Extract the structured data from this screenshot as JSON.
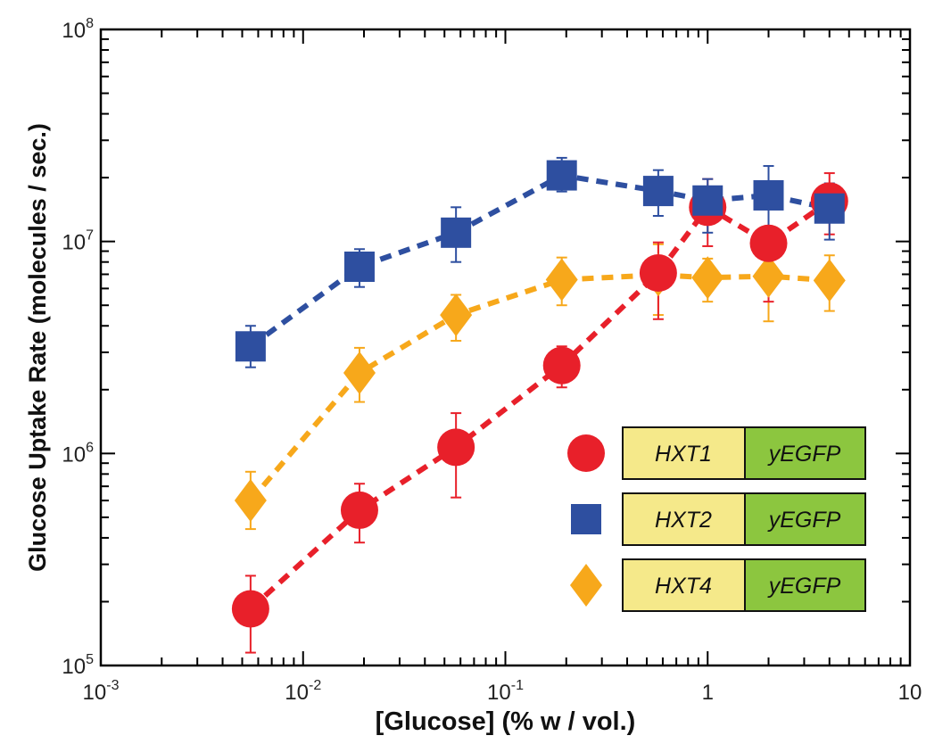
{
  "chart_data": {
    "type": "scatter",
    "xlabel": "[Glucose] (% w / vol.)",
    "ylabel": "Glucose Uptake Rate (molecules / sec.)",
    "x_scale": "log",
    "y_scale": "log",
    "xlim": [
      0.001,
      10
    ],
    "ylim": [
      100000,
      100000000
    ],
    "x_ticks": [
      {
        "value": 0.001,
        "base": "10",
        "exp": "-3"
      },
      {
        "value": 0.01,
        "base": "10",
        "exp": "-2"
      },
      {
        "value": 0.1,
        "base": "10",
        "exp": "-1"
      },
      {
        "value": 1,
        "base": "1",
        "exp": ""
      },
      {
        "value": 10,
        "base": "10",
        "exp": ""
      }
    ],
    "y_ticks": [
      {
        "value": 100000,
        "base": "10",
        "exp": "5"
      },
      {
        "value": 1000000,
        "base": "10",
        "exp": "6"
      },
      {
        "value": 10000000,
        "base": "10",
        "exp": "7"
      },
      {
        "value": 100000000,
        "base": "10",
        "exp": "8"
      }
    ],
    "grid": false,
    "legend_position": "bottom-right",
    "x": [
      0.0055,
      0.019,
      0.057,
      0.19,
      0.57,
      1,
      2,
      4
    ],
    "series": [
      {
        "name_left": "HXT1",
        "name_right": "yEGFP",
        "marker": "circle",
        "color": "#e8202a",
        "values": [
          185000,
          540000,
          1070000,
          2600000,
          7100000,
          14500000,
          9800000,
          15500000
        ],
        "err_low": [
          115000,
          380000,
          620000,
          2050000,
          4300000,
          9500000,
          5200000,
          10800000
        ],
        "err_high": [
          265000,
          720000,
          1550000,
          3200000,
          9900000,
          19700000,
          15000000,
          21000000
        ]
      },
      {
        "name_left": "HXT2",
        "name_right": "yEGFP",
        "marker": "square",
        "color": "#2e4fa0",
        "values": [
          3200000,
          7600000,
          11000000,
          20500000,
          17300000,
          15600000,
          16500000,
          14300000
        ],
        "err_low": [
          2550000,
          6100000,
          8000000,
          17200000,
          13200000,
          11000000,
          11500000,
          10200000
        ],
        "err_high": [
          4000000,
          9200000,
          14500000,
          24800000,
          21700000,
          19700000,
          22700000,
          18800000
        ]
      },
      {
        "name_left": "HXT4",
        "name_right": "yEGFP",
        "marker": "diamond",
        "color": "#f7a81b",
        "values": [
          600000,
          2400000,
          4500000,
          6600000,
          6950000,
          6750000,
          6850000,
          6550000
        ],
        "err_low": [
          440000,
          1750000,
          3400000,
          5000000,
          4500000,
          5200000,
          4200000,
          4700000
        ],
        "err_high": [
          820000,
          3150000,
          5600000,
          8400000,
          9700000,
          8300000,
          9700000,
          8600000
        ]
      }
    ],
    "legend_colors": {
      "gene_box": "#f5e98a",
      "gfp_box": "#8cc63f",
      "box_border": "#111111"
    }
  }
}
